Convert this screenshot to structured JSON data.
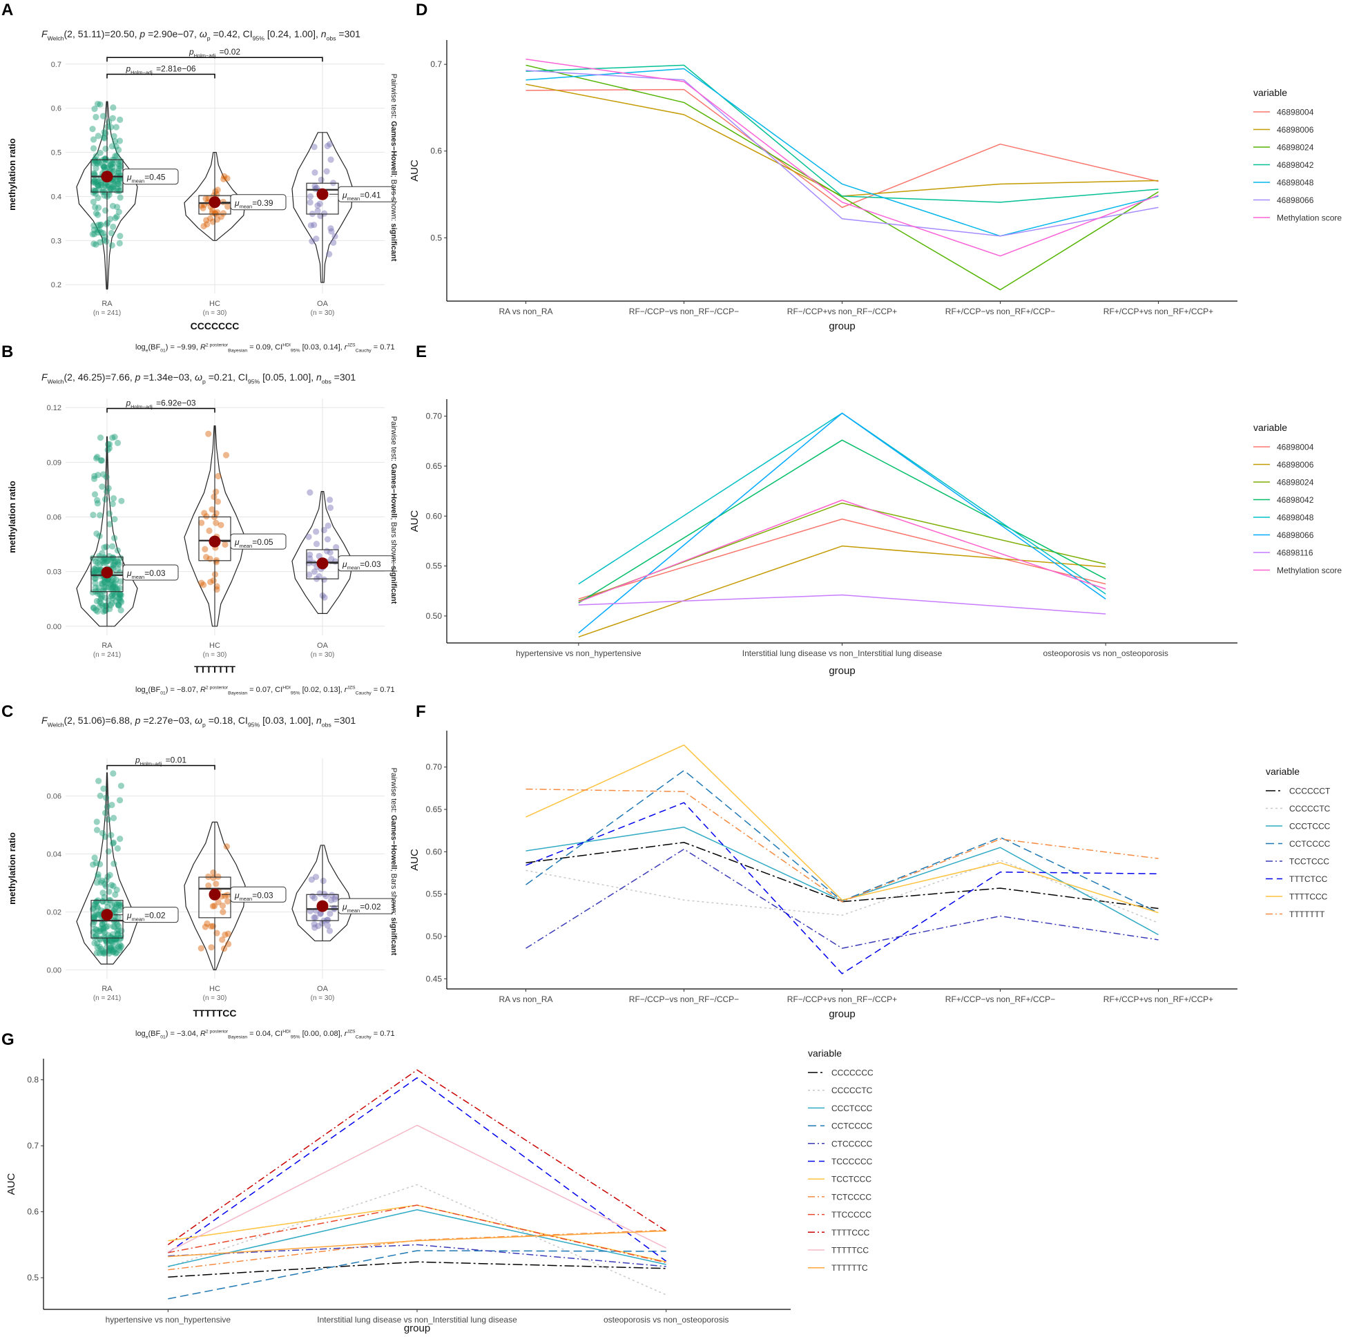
{
  "figure": {
    "panel_letters": [
      "A",
      "B",
      "C",
      "D",
      "E",
      "F",
      "G"
    ]
  },
  "chart_data": [
    {
      "panel": "A",
      "type": "violin-box",
      "title_parts": {
        "f": "F",
        "f_sub": "Welch",
        "df": "(2, 51.11)",
        "stat": "=20.50, ",
        "p": "p",
        "p_val": " =2.90e−07, ",
        "omega": "ω",
        "omega_sub": "p",
        "omega_val": " =0.42, CI",
        "ci_sub": "95%",
        "ci_val": " [0.24, 1.00], ",
        "n": "n",
        "n_sub": "obs",
        "n_val": " =301"
      },
      "ylabel": "methylation ratio",
      "xlabel": "CCCCCCC",
      "ylim": [
        0.18,
        0.72
      ],
      "yticks": [
        0.2,
        0.3,
        0.4,
        0.5,
        0.6,
        0.7
      ],
      "ytick_labels": [
        "0.2",
        "0.3",
        "0.4",
        "0.5",
        "0.6",
        "0.7"
      ],
      "groups": [
        {
          "name": "RA",
          "n_label": "(n = 241)",
          "color": "#1b9e77",
          "mean": 0.445,
          "mean_label": "=0.45",
          "median": 0.445,
          "q1": 0.41,
          "q3": 0.483,
          "min": 0.19,
          "max": 0.615,
          "violin_width": [
            0.02,
            0.05,
            0.08,
            0.16,
            0.45,
            0.92,
            1.0,
            0.75,
            0.32,
            0.14,
            0.06,
            0.02
          ]
        },
        {
          "name": "HC",
          "n_label": "(n = 30)",
          "color": "#d95f02",
          "mean": 0.387,
          "mean_label": "=0.39",
          "median": 0.385,
          "q1": 0.36,
          "q3": 0.402,
          "min": 0.3,
          "max": 0.5,
          "violin_width": [
            0.05,
            0.55,
            0.95,
            1.0,
            0.6,
            0.3,
            0.12,
            0.05
          ]
        },
        {
          "name": "OA",
          "n_label": "(n = 30)",
          "color": "#7570b3",
          "mean": 0.405,
          "mean_label": "=0.41",
          "median": 0.415,
          "q1": 0.36,
          "q3": 0.43,
          "min": 0.205,
          "max": 0.545,
          "violin_width": [
            0.05,
            0.08,
            0.22,
            0.6,
            0.95,
            1.0,
            0.8,
            0.45,
            0.15
          ]
        }
      ],
      "mean_prefix": "μ",
      "mean_sub": "mean",
      "brackets": [
        {
          "from": "RA",
          "to": "HC",
          "y": 0.677,
          "label_p": "p",
          "label_sub": "Holm−adj.",
          "label_val": " =2.81e−06"
        },
        {
          "from": "RA",
          "to": "OA",
          "y": 0.715,
          "label_p": "p",
          "label_sub": "Holm−adj.",
          "label_val": " =0.02"
        }
      ],
      "side_text": {
        "prefix": "Pairwise test: ",
        "test": "Games−Howell",
        "middle": "; Bars shown: ",
        "bars": "significant"
      },
      "caption": {
        "a": "log",
        "a_sub": "e",
        "b": "(BF",
        "b_sub": "01",
        "c": ") = −9.99, ",
        "r2": "R",
        "r2_sup": "2 posterior",
        "r2_sub": "Bayesian",
        "d": " = 0.09, CI",
        "ci_sup": "HDI",
        "ci_sub": "95%",
        "e": " [0.03, 0.14], ",
        "r": "r",
        "r_sup": "JZS",
        "r_sub": "Cauchy",
        "f": " = 0.71"
      }
    },
    {
      "panel": "B",
      "type": "violin-box",
      "title_parts": {
        "f": "F",
        "f_sub": "Welch",
        "df": "(2, 46.25)",
        "stat": "=7.66, ",
        "p": "p",
        "p_val": " =1.34e−03, ",
        "omega": "ω",
        "omega_sub": "p",
        "omega_val": " =0.21, CI",
        "ci_sub": "95%",
        "ci_val": " [0.05, 1.00], ",
        "n": "n",
        "n_sub": "obs",
        "n_val": " =301"
      },
      "ylabel": "methylation ratio",
      "xlabel": "TTTTTTT",
      "ylim": [
        -0.005,
        0.125
      ],
      "yticks": [
        0.0,
        0.03,
        0.06,
        0.09,
        0.12
      ],
      "ytick_labels": [
        "0.00",
        "0.03",
        "0.06",
        "0.09",
        "0.12"
      ],
      "groups": [
        {
          "name": "RA",
          "n_label": "(n = 241)",
          "color": "#1b9e77",
          "mean": 0.0295,
          "mean_label": "=0.03",
          "median": 0.028,
          "q1": 0.019,
          "q3": 0.038,
          "min": 0.0,
          "max": 0.104,
          "violin_width": [
            0.25,
            0.85,
            1.0,
            0.65,
            0.35,
            0.2,
            0.12,
            0.06,
            0.04,
            0.02,
            0.01
          ]
        },
        {
          "name": "HC",
          "n_label": "(n = 30)",
          "color": "#d95f02",
          "mean": 0.0465,
          "mean_label": "=0.05",
          "median": 0.047,
          "q1": 0.036,
          "q3": 0.06,
          "min": 0.0,
          "max": 0.11,
          "violin_width": [
            0.08,
            0.2,
            0.55,
            0.85,
            1.0,
            0.7,
            0.35,
            0.15,
            0.06,
            0.02
          ]
        },
        {
          "name": "OA",
          "n_label": "(n = 30)",
          "color": "#7570b3",
          "mean": 0.0345,
          "mean_label": "=0.03",
          "median": 0.035,
          "q1": 0.026,
          "q3": 0.042,
          "min": 0.007,
          "max": 0.074,
          "violin_width": [
            0.15,
            0.55,
            0.9,
            1.0,
            0.7,
            0.35,
            0.12,
            0.04
          ]
        }
      ],
      "mean_prefix": "μ",
      "mean_sub": "mean",
      "brackets": [
        {
          "from": "RA",
          "to": "HC",
          "y": 0.1195,
          "label_p": "p",
          "label_sub": "Holm−adj.",
          "label_val": " =6.92e−03"
        }
      ],
      "side_text": {
        "prefix": "Pairwise test: ",
        "test": "Games−Howell",
        "middle": "; Bars shown: ",
        "bars": "significant"
      },
      "caption": {
        "a": "log",
        "a_sub": "e",
        "b": "(BF",
        "b_sub": "01",
        "c": ") = −8.07, ",
        "r2": "R",
        "r2_sup": "2 posterior",
        "r2_sub": "Bayesian",
        "d": " = 0.07, CI",
        "ci_sup": "HDI",
        "ci_sub": "95%",
        "e": " [0.02, 0.13], ",
        "r": "r",
        "r_sup": "JZS",
        "r_sub": "Cauchy",
        "f": " = 0.71"
      }
    },
    {
      "panel": "C",
      "type": "violin-box",
      "title_parts": {
        "f": "F",
        "f_sub": "Welch",
        "df": "(2, 51.06)",
        "stat": "=6.88, ",
        "p": "p",
        "p_val": " =2.27e−03, ",
        "omega": "ω",
        "omega_sub": "p",
        "omega_val": " =0.18, CI",
        "ci_sub": "95%",
        "ci_val": " [0.03, 1.00], ",
        "n": "n",
        "n_sub": "obs",
        "n_val": " =301"
      },
      "ylabel": "methylation ratio",
      "xlabel": "TTTTTCC",
      "ylim": [
        -0.003,
        0.073
      ],
      "yticks": [
        0.0,
        0.02,
        0.04,
        0.06
      ],
      "ytick_labels": [
        "0.00",
        "0.02",
        "0.04",
        "0.06"
      ],
      "groups": [
        {
          "name": "RA",
          "n_label": "(n = 241)",
          "color": "#1b9e77",
          "mean": 0.019,
          "mean_label": "=0.02",
          "median": 0.017,
          "q1": 0.011,
          "q3": 0.024,
          "min": 0.002,
          "max": 0.068,
          "violin_width": [
            0.2,
            0.75,
            1.0,
            0.7,
            0.4,
            0.22,
            0.12,
            0.06,
            0.03,
            0.01
          ]
        },
        {
          "name": "HC",
          "n_label": "(n = 30)",
          "color": "#d95f02",
          "mean": 0.026,
          "mean_label": "=0.03",
          "median": 0.028,
          "q1": 0.018,
          "q3": 0.032,
          "min": 0.0,
          "max": 0.051,
          "violin_width": [
            0.04,
            0.3,
            0.65,
            0.95,
            1.0,
            0.7,
            0.3,
            0.08
          ]
        },
        {
          "name": "OA",
          "n_label": "(n = 30)",
          "color": "#7570b3",
          "mean": 0.022,
          "mean_label": "=0.02",
          "median": 0.021,
          "q1": 0.017,
          "q3": 0.026,
          "min": 0.01,
          "max": 0.043,
          "violin_width": [
            0.25,
            0.8,
            1.0,
            0.85,
            0.5,
            0.2,
            0.06
          ]
        }
      ],
      "mean_prefix": "μ",
      "mean_sub": "mean",
      "brackets": [
        {
          "from": "RA",
          "to": "HC",
          "y": 0.0705,
          "label_p": "p",
          "label_sub": "Holm−adj.",
          "label_val": " =0.01"
        }
      ],
      "side_text": {
        "prefix": "Pairwise test: ",
        "test": "Games−Howell",
        "middle": "; Bars shown: ",
        "bars": "significant"
      },
      "caption": {
        "a": "log",
        "a_sub": "e",
        "b": "(BF",
        "b_sub": "01",
        "c": ") = −3.04, ",
        "r2": "R",
        "r2_sup": "2 posterior",
        "r2_sub": "Bayesian",
        "d": " = 0.04, CI",
        "ci_sup": "HDI",
        "ci_sub": "95%",
        "e": " [0.00, 0.08], ",
        "r": "r",
        "r_sup": "JZS",
        "r_sub": "Cauchy",
        "f": " = 0.71"
      }
    },
    {
      "panel": "D",
      "type": "line",
      "xlabel": "group",
      "ylabel": "AUC",
      "ylim": [
        0.427,
        0.728
      ],
      "yticks": [
        0.5,
        0.6,
        0.7
      ],
      "ytick_labels": [
        "0.5",
        "0.6",
        "0.7"
      ],
      "categories": [
        "RA vs non_RA",
        "RF−/CCP−vs non_RF−/CCP−",
        "RF−/CCP+vs non_RF−/CCP+",
        "RF+/CCP−vs non_RF+/CCP−",
        "RF+/CCP+vs non_RF+/CCP+"
      ],
      "legend_title": "variable",
      "series": [
        {
          "name": "46898004",
          "color": "#f8766d",
          "dash": "",
          "values": [
            0.67,
            0.671,
            0.535,
            0.608,
            0.565
          ]
        },
        {
          "name": "46898006",
          "color": "#c49a00",
          "dash": "",
          "values": [
            0.677,
            0.642,
            0.548,
            0.562,
            0.566
          ]
        },
        {
          "name": "46898024",
          "color": "#53b400",
          "dash": "",
          "values": [
            0.699,
            0.656,
            0.547,
            0.44,
            0.553
          ]
        },
        {
          "name": "46898042",
          "color": "#00c094",
          "dash": "",
          "values": [
            0.692,
            0.699,
            0.548,
            0.541,
            0.556
          ]
        },
        {
          "name": "46898048",
          "color": "#00b6eb",
          "dash": "",
          "values": [
            0.682,
            0.695,
            0.562,
            0.502,
            0.548
          ]
        },
        {
          "name": "46898066",
          "color": "#a58aff",
          "dash": "",
          "values": [
            0.693,
            0.682,
            0.522,
            0.502,
            0.535
          ]
        },
        {
          "name": "Methylation score",
          "color": "#fb61d7",
          "dash": "",
          "values": [
            0.706,
            0.68,
            0.541,
            0.479,
            0.549
          ]
        }
      ]
    },
    {
      "panel": "E",
      "type": "line",
      "xlabel": "group",
      "ylabel": "AUC",
      "ylim": [
        0.473,
        0.717
      ],
      "yticks": [
        0.5,
        0.55,
        0.6,
        0.65,
        0.7
      ],
      "ytick_labels": [
        "0.50",
        "0.55",
        "0.60",
        "0.65",
        "0.70"
      ],
      "categories": [
        "hypertensive vs non_hypertensive",
        "Interstitial lung disease vs non_Interstitial lung disease",
        "osteoporosis vs non_osteoporosis"
      ],
      "legend_title": "variable",
      "series": [
        {
          "name": "46898004",
          "color": "#f8766d",
          "dash": "",
          "values": [
            0.517,
            0.597,
            0.532
          ]
        },
        {
          "name": "46898006",
          "color": "#c49a00",
          "dash": "",
          "values": [
            0.479,
            0.57,
            0.549
          ]
        },
        {
          "name": "46898024",
          "color": "#7cae00",
          "dash": "",
          "values": [
            0.515,
            0.613,
            0.552
          ]
        },
        {
          "name": "46898042",
          "color": "#00be67",
          "dash": "",
          "values": [
            0.513,
            0.676,
            0.537
          ]
        },
        {
          "name": "46898048",
          "color": "#00bfc4",
          "dash": "",
          "values": [
            0.532,
            0.703,
            0.522
          ]
        },
        {
          "name": "46898066",
          "color": "#00a9ff",
          "dash": "",
          "values": [
            0.483,
            0.703,
            0.517
          ]
        },
        {
          "name": "46898116",
          "color": "#c77cff",
          "dash": "",
          "values": [
            0.511,
            0.521,
            0.502
          ]
        },
        {
          "name": "Methylation score",
          "color": "#ff61cc",
          "dash": "",
          "values": [
            0.514,
            0.616,
            0.527
          ]
        }
      ]
    },
    {
      "panel": "F",
      "type": "line",
      "xlabel": "group",
      "ylabel": "AUC",
      "ylim": [
        0.438,
        0.743
      ],
      "yticks": [
        0.45,
        0.5,
        0.55,
        0.6,
        0.65,
        0.7
      ],
      "ytick_labels": [
        "0.45",
        "0.50",
        "0.55",
        "0.60",
        "0.65",
        "0.70"
      ],
      "categories": [
        "RA vs non_RA",
        "RF−/CCP−vs non_RF−/CCP−",
        "RF−/CCP+vs non_RF−/CCP+",
        "RF+/CCP−vs non_RF+/CCP−",
        "RF+/CCP+vs non_RF+/CCP+"
      ],
      "legend_title": "variable",
      "series": [
        {
          "name": "CCCCCCT",
          "color": "#000000",
          "dash": "14 4 3 4",
          "values": [
            0.587,
            0.611,
            0.541,
            0.557,
            0.533
          ]
        },
        {
          "name": "CCCCCTC",
          "color": "#c8c8c8",
          "dash": "3 4",
          "values": [
            0.578,
            0.543,
            0.525,
            0.59,
            0.516
          ]
        },
        {
          "name": "CCCTCCC",
          "color": "#2eaac4",
          "dash": "",
          "values": [
            0.601,
            0.629,
            0.542,
            0.605,
            0.502
          ]
        },
        {
          "name": "CCTCCCC",
          "color": "#1f78b4",
          "dash": "12 6",
          "values": [
            0.561,
            0.696,
            0.542,
            0.617,
            0.528
          ]
        },
        {
          "name": "TCCTCCC",
          "color": "#3a3ab8",
          "dash": "10 4 2 4",
          "values": [
            0.486,
            0.603,
            0.486,
            0.524,
            0.496
          ]
        },
        {
          "name": "TTTCTCC",
          "color": "#0000ee",
          "dash": "10 6",
          "values": [
            0.584,
            0.658,
            0.456,
            0.576,
            0.574
          ]
        },
        {
          "name": "TTTTCCC",
          "color": "#fdc23e",
          "dash": "",
          "values": [
            0.641,
            0.726,
            0.543,
            0.587,
            0.528
          ]
        },
        {
          "name": "TTTTTTT",
          "color": "#f58a40",
          "dash": "10 4 2 4",
          "values": [
            0.674,
            0.671,
            0.541,
            0.615,
            0.592
          ]
        }
      ]
    },
    {
      "panel": "G",
      "type": "line",
      "xlabel": "group",
      "ylabel": "AUC",
      "ylim": [
        0.452,
        0.832
      ],
      "yticks": [
        0.5,
        0.6,
        0.7,
        0.8
      ],
      "ytick_labels": [
        "0.5",
        "0.6",
        "0.7",
        "0.8"
      ],
      "categories": [
        "hypertensive vs non_hypertensive",
        "Interstitial lung disease vs non_Interstitial lung disease",
        "osteoporosis vs non_osteoporosis"
      ],
      "legend_title": "variable",
      "series": [
        {
          "name": "CCCCCCC",
          "color": "#000000",
          "dash": "14 4 3 4",
          "values": [
            0.501,
            0.524,
            0.514
          ]
        },
        {
          "name": "CCCCCTC",
          "color": "#c8c8c8",
          "dash": "3 4",
          "values": [
            0.516,
            0.641,
            0.474
          ]
        },
        {
          "name": "CCCTCCC",
          "color": "#2eaac4",
          "dash": "",
          "values": [
            0.517,
            0.603,
            0.52
          ]
        },
        {
          "name": "CCTCCCC",
          "color": "#1f78b4",
          "dash": "12 6",
          "values": [
            0.468,
            0.541,
            0.54
          ]
        },
        {
          "name": "CTCCCCC",
          "color": "#3a3ab8",
          "dash": "10 4 2 4",
          "values": [
            0.533,
            0.55,
            0.517
          ]
        },
        {
          "name": "TCCCCCC",
          "color": "#0000ee",
          "dash": "10 6",
          "values": [
            0.538,
            0.803,
            0.525
          ]
        },
        {
          "name": "TCCTCCC",
          "color": "#fdc23e",
          "dash": "",
          "values": [
            0.556,
            0.61,
            0.524
          ]
        },
        {
          "name": "TCTCCCC",
          "color": "#f58a40",
          "dash": "10 4 2 4",
          "values": [
            0.512,
            0.557,
            0.572
          ]
        },
        {
          "name": "TTCCCCC",
          "color": "#e8472a",
          "dash": "10 4 2 4",
          "values": [
            0.538,
            0.61,
            0.523
          ]
        },
        {
          "name": "TTTTCCC",
          "color": "#cc0000",
          "dash": "10 4 2 4",
          "values": [
            0.55,
            0.815,
            0.571
          ]
        },
        {
          "name": "TTTTTCC",
          "color": "#f5b8c8",
          "dash": "",
          "values": [
            0.539,
            0.731,
            0.545
          ]
        },
        {
          "name": "TTTTTTC",
          "color": "#ffa53c",
          "dash": "",
          "values": [
            0.532,
            0.556,
            0.571
          ]
        }
      ]
    }
  ]
}
